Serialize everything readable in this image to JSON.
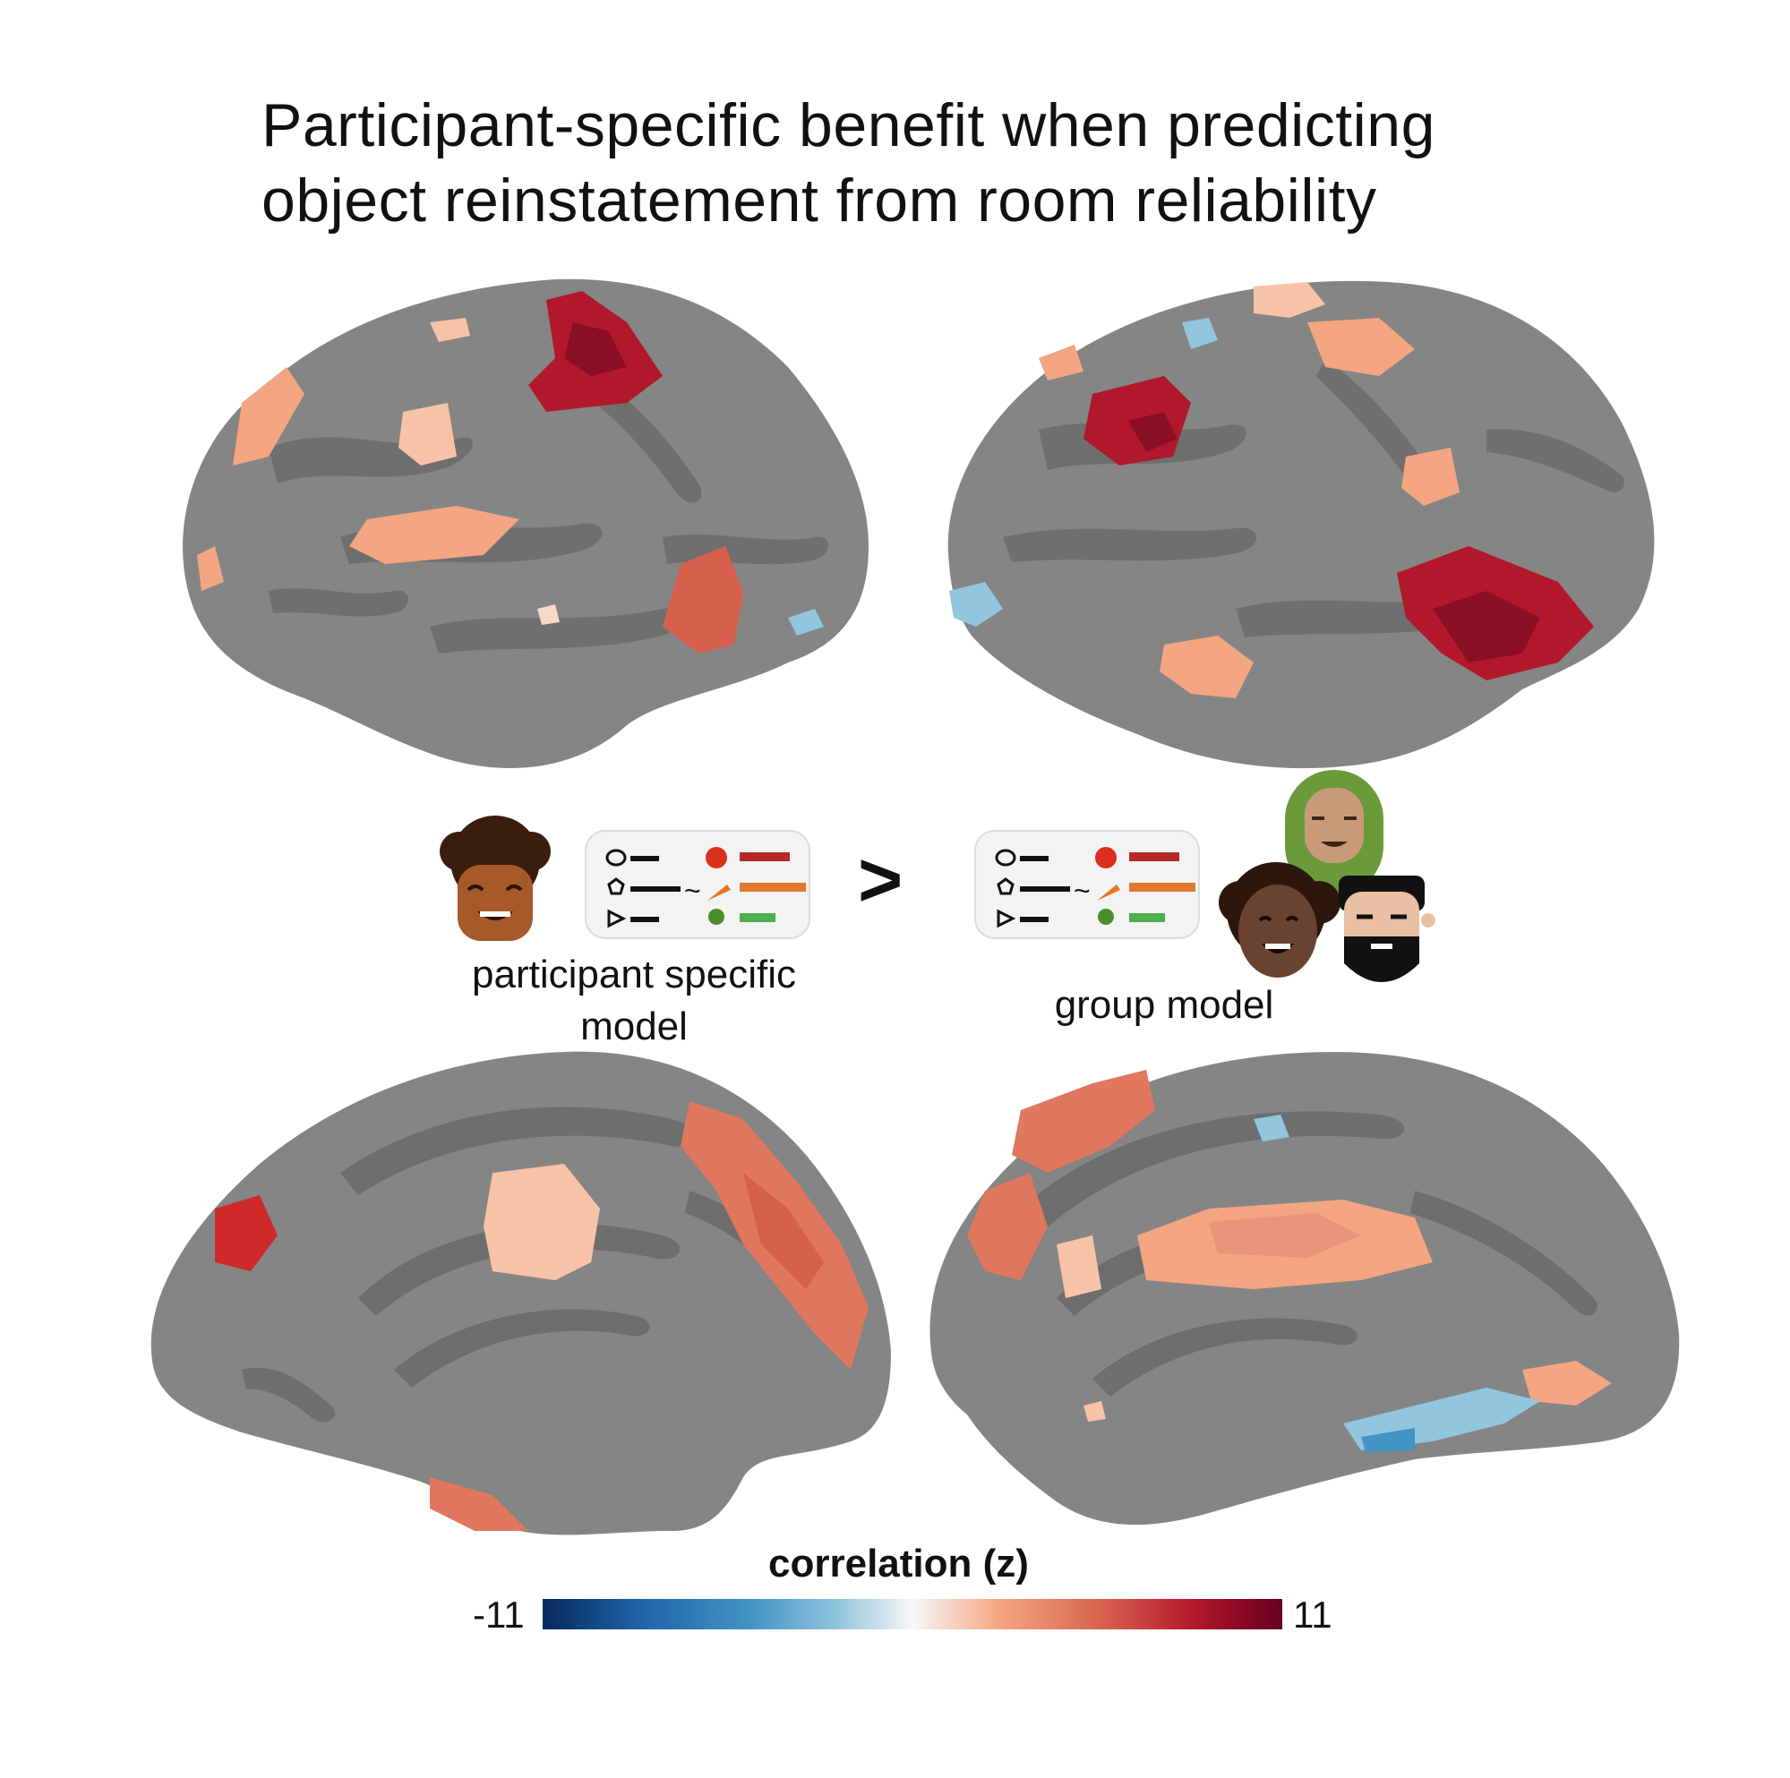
{
  "title": {
    "line1": "Participant-specific benefit when predicting",
    "line2": "object reinstatement from room reliability"
  },
  "models": {
    "left_label_line1": "participant specific",
    "left_label_line2": "model",
    "comparison_symbol": ">",
    "right_label": "group model"
  },
  "colorbar": {
    "title": "correlation (z)",
    "min_label": "-11",
    "max_label": "11",
    "colors": [
      "#072a5c",
      "#2166ac",
      "#4393c3",
      "#92c5de",
      "#f7f7f7",
      "#f4a582",
      "#d6604d",
      "#b2182b",
      "#67001f"
    ]
  },
  "views": [
    "left-lateral-view",
    "right-lateral-view",
    "left-medial-view",
    "right-medial-view"
  ]
}
